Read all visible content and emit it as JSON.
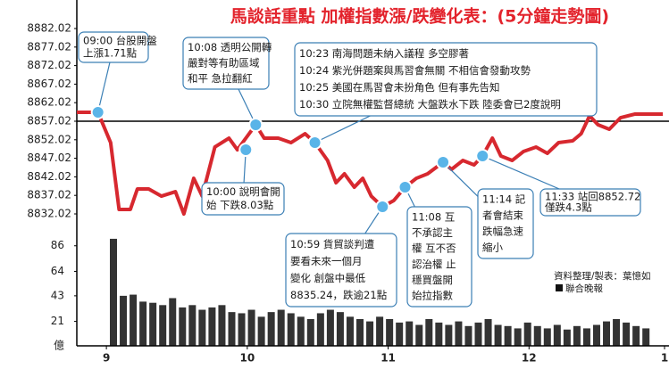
{
  "chart_data": [
    {
      "type": "line",
      "title": "馬談話重點 加權指數漲/跌變化表：(5分鐘走勢圖)",
      "xlim": [
        8.79,
        13
      ],
      "ylim": [
        8832.02,
        8882.02
      ],
      "yticks": [
        8882.02,
        8877.02,
        8872.02,
        8867.02,
        8862.02,
        8857.02,
        8852.02,
        8847.02,
        8842.02,
        8837.02,
        8832.02
      ],
      "reference_line": 8857.02,
      "series": [
        {
          "color": "#d7282f",
          "x": [
            8.79,
            8.94,
            9.03,
            9.09,
            9.17,
            9.22,
            9.3,
            9.39,
            9.49,
            9.55,
            9.62,
            9.68,
            9.77,
            9.87,
            9.93,
            9.99,
            10.06,
            10.12,
            10.22,
            10.31,
            10.41,
            10.48,
            10.57,
            10.63,
            10.69,
            10.76,
            10.82,
            10.88,
            10.96,
            11.04,
            11.12,
            11.2,
            11.28,
            11.39,
            11.45,
            11.53,
            11.61,
            11.67,
            11.74,
            11.8,
            11.88,
            11.96,
            12.05,
            12.13,
            12.21,
            12.31,
            12.37,
            12.43,
            12.49,
            12.57,
            12.65,
            12.75,
            12.86,
            12.95
          ],
          "values": [
            8859.42,
            8859.42,
            8851.25,
            8833.22,
            8833.22,
            8838.75,
            8838.75,
            8836.82,
            8838.02,
            8832.02,
            8841.62,
            8836.82,
            8850.05,
            8852.45,
            8849.32,
            8852.45,
            8856.06,
            8852.45,
            8852.45,
            8851.25,
            8853.65,
            8851.25,
            8846.44,
            8840.43,
            8842.83,
            8839.23,
            8841.62,
            8836.82,
            8833.94,
            8835.62,
            8839.23,
            8841.62,
            8842.83,
            8845.96,
            8844.04,
            8846.44,
            8845.24,
            8847.64,
            8852.45,
            8847.64,
            8846.44,
            8848.84,
            8850.05,
            8848.36,
            8851.25,
            8851.73,
            8853.65,
            8858.46,
            8856.06,
            8854.85,
            8857.98,
            8858.94,
            8858.94,
            8858.94
          ]
        }
      ],
      "marker_color": "#5ab4e8",
      "annotations": [
        {
          "x": 8.94,
          "y": 8859.42,
          "lines": [
            "09:00 台股開盤",
            "上漲1.71點"
          ]
        },
        {
          "x": 9.99,
          "y": 8849.32,
          "lines": [
            "10:00 說明會開",
            "始 下跌8.03點"
          ]
        },
        {
          "x": 10.06,
          "y": 8856.06,
          "lines": [
            "10:08 透明公開轉",
            "嚴對等有助區域",
            "和平 急拉翻紅"
          ]
        },
        {
          "x": 10.48,
          "y": 8851.25,
          "lines": [
            "10:23 南海問題未納入議程 多空膠著",
            "10:24 紫光併題案與馬習會無關 不相信會發動攻勢",
            "10:25 美國在馬習會未扮角色 但有事先告知",
            "10:30 立院無權監督總統 大盤跌水下跌 陸委會已2度說明"
          ]
        },
        {
          "x": 10.96,
          "y": 8833.94,
          "lines": [
            "10:59 貨貿談判遭",
            "要看未來一個月",
            "變化 創盤中最低",
            "8835.24，跌逾21點"
          ]
        },
        {
          "x": 11.12,
          "y": 8839.23,
          "lines": [
            "11:08 互",
            "不承認主",
            "權 互不否",
            "認治權 止",
            "穩買盤開",
            "始拉指數"
          ]
        },
        {
          "x": 11.39,
          "y": 8845.96,
          "lines": [
            "11:14 記",
            "者會結束",
            "跌幅急速",
            "縮小"
          ]
        },
        {
          "x": 11.67,
          "y": 8847.64,
          "lines": [
            "11:33 站回8852.72",
            "僅跌4.3點"
          ]
        }
      ]
    },
    {
      "type": "bar",
      "ylabel": "億",
      "color": "#333333",
      "xlim": [
        8.79,
        13
      ],
      "xticks": [
        9,
        10,
        11,
        12,
        {
          "value": 13,
          "label": "1"
        }
      ],
      "ylim": [
        0,
        95
      ],
      "yticks": [
        86,
        64,
        43,
        21
      ],
      "x": [
        9.05,
        9.12,
        9.19,
        9.26,
        9.33,
        9.4,
        9.47,
        9.54,
        9.61,
        9.68,
        9.75,
        9.82,
        9.89,
        9.96,
        10.03,
        10.1,
        10.17,
        10.24,
        10.31,
        10.38,
        10.45,
        10.52,
        10.59,
        10.66,
        10.73,
        10.8,
        10.87,
        10.94,
        11.01,
        11.08,
        11.15,
        11.22,
        11.29,
        11.36,
        11.43,
        11.5,
        11.57,
        11.64,
        11.71,
        11.78,
        11.85,
        11.92,
        11.99,
        12.06,
        12.13,
        12.2,
        12.27,
        12.34,
        12.41,
        12.48,
        12.55,
        12.62,
        12.69,
        12.76,
        12.83
      ],
      "values": [
        92,
        43,
        44,
        38,
        37,
        35,
        41,
        33,
        35,
        31,
        33,
        35,
        29,
        28,
        31,
        25,
        29,
        31,
        28,
        25,
        23,
        28,
        31,
        29,
        25,
        23,
        21,
        25,
        23,
        20,
        21,
        18,
        23,
        20,
        18,
        21,
        17,
        20,
        23,
        18,
        17,
        15,
        20,
        17,
        15,
        18,
        14,
        17,
        15,
        18,
        21,
        23,
        20,
        17,
        15
      ],
      "notes": [
        "資料整理/製表：葉憶如",
        "聯合晚報"
      ]
    }
  ]
}
